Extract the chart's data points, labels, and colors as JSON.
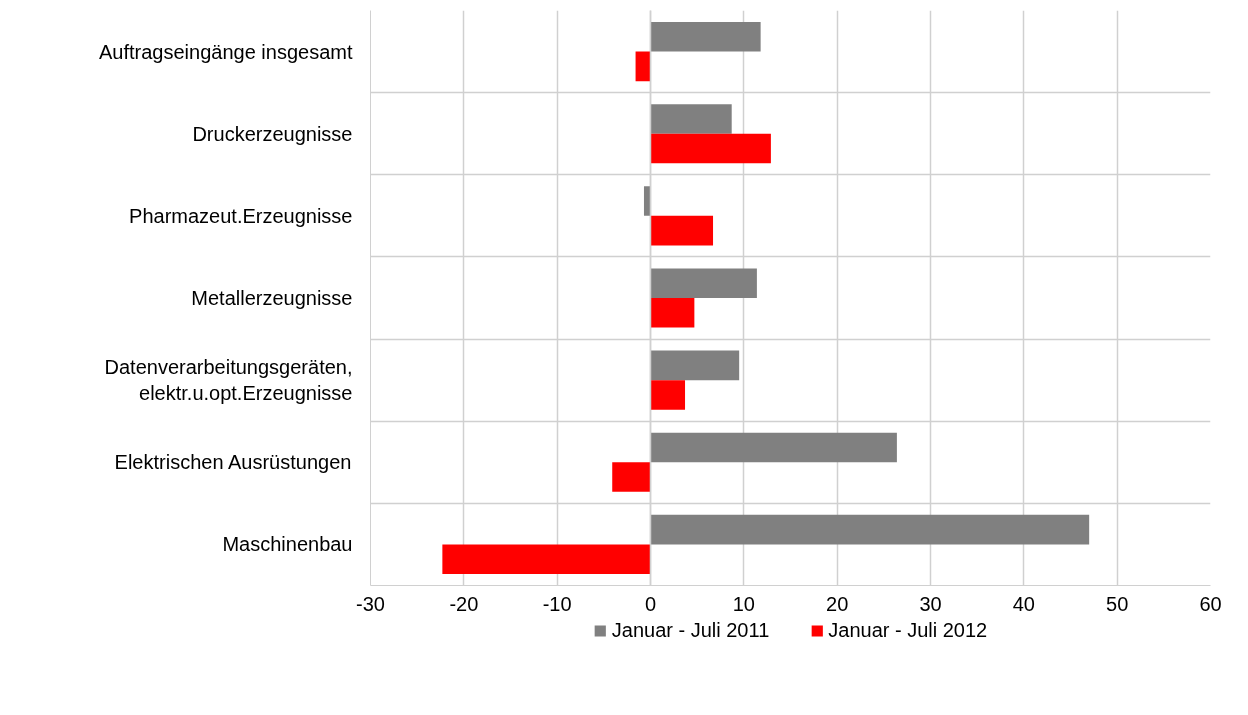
{
  "chart_data": {
    "type": "bar",
    "orientation": "horizontal",
    "categories": [
      "Auftragseingänge insgesamt",
      "Druckerzeugnisse",
      "Pharmazeut.Erzeugnisse",
      "Metallerzeugnisse",
      "Datenverarbeitungsgeräten, elektr.u.opt.Erzeugnisse",
      "Elektrischen Ausrüstungen",
      "Maschinenbau"
    ],
    "series": [
      {
        "name": "Januar - Juli 2011",
        "color": "#808080",
        "values": [
          11.8,
          8.7,
          -0.7,
          11.4,
          9.5,
          26.4,
          47.0
        ]
      },
      {
        "name": "Januar - Juli 2012",
        "color": "#ff0000",
        "values": [
          -1.6,
          12.9,
          6.7,
          4.7,
          3.7,
          -4.1,
          -22.3
        ]
      }
    ],
    "xlim": [
      -30,
      60
    ],
    "xticks": [
      -30,
      -20,
      -10,
      0,
      10,
      20,
      30,
      40,
      50,
      60
    ],
    "grid": true,
    "legend": "bottom"
  }
}
